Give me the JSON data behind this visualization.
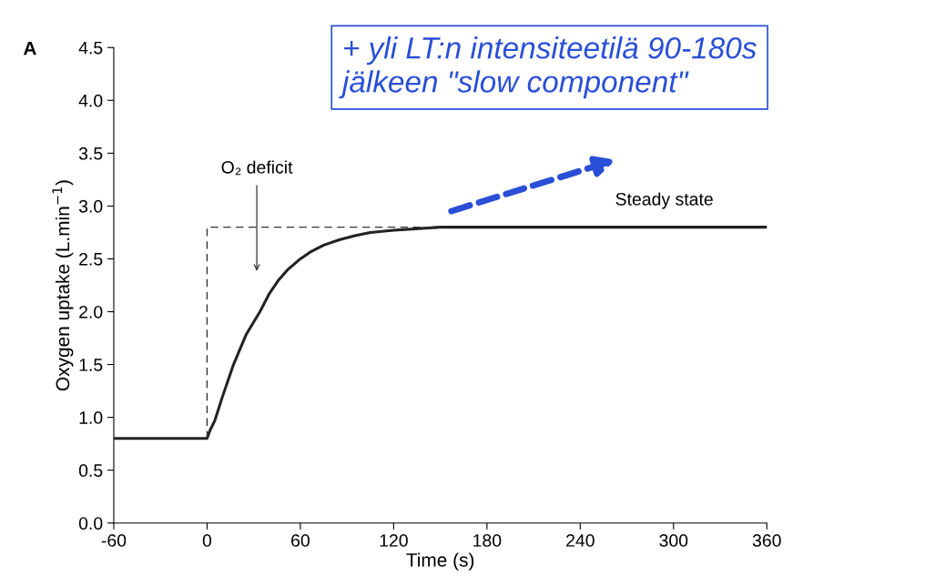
{
  "chart_data": {
    "type": "line",
    "xlabel": "Time (s)",
    "ylabel": "Oxygen uptake (L.min$^{−1}$)",
    "xlim": [
      -60,
      360
    ],
    "xticks": [
      -60,
      0,
      60,
      120,
      180,
      240,
      300,
      360
    ],
    "ylim": [
      0,
      4.5
    ],
    "yticks": [
      {
        "value": 0,
        "label": "0.0"
      },
      {
        "value": 0.5,
        "label": "0.5"
      },
      {
        "value": 1,
        "label": "1.0"
      },
      {
        "value": 1.5,
        "label": "1.5"
      },
      {
        "value": 2,
        "label": "2.0"
      },
      {
        "value": 2.5,
        "label": "2.5"
      },
      {
        "value": 3,
        "label": "3.0"
      },
      {
        "value": 3.5,
        "label": "3.5"
      },
      {
        "value": 4,
        "label": "4.0"
      },
      {
        "value": 4.5,
        "label": "4.5"
      }
    ],
    "grid": false,
    "legend": false,
    "series": [
      {
        "color": "#222222",
        "line_style": "solid",
        "x": [
          -60,
          0,
          2,
          5,
          10,
          17,
          25,
          34,
          40,
          46,
          52,
          60,
          67,
          75,
          85,
          95,
          105,
          120,
          150,
          200,
          360
        ],
        "values": [
          0.8,
          0.8,
          0.88,
          0.97,
          1.2,
          1.5,
          1.78,
          2.0,
          2.17,
          2.3,
          2.4,
          2.5,
          2.57,
          2.63,
          2.68,
          2.72,
          2.75,
          2.77,
          2.8,
          2.8,
          2.8
        ]
      },
      {
        "color": "#333333",
        "line_style": "dashed",
        "x": [
          0,
          0,
          150
        ],
        "values": [
          0.8,
          2.8,
          2.8
        ]
      }
    ],
    "annotations": [
      "A",
      "O₂ deficit",
      "Steady state",
      "+ yli LT:n intensiteetilä 90-180s\njälkeen \"slow component\""
    ]
  }
}
